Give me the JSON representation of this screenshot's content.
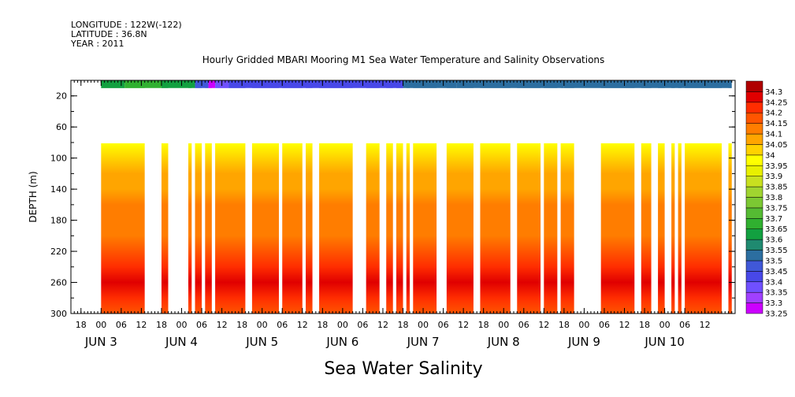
{
  "header": {
    "longitude": "LONGITUDE : 122W(-122)",
    "latitude": "LATITUDE : 36.8N",
    "year": "YEAR : 2011"
  },
  "chart_data": {
    "type": "heatmap",
    "title": "Hourly Gridded MBARI Mooring M1 Sea Water Temperature and Salinity Observations",
    "xlabel": "Sea Water Salinity",
    "ylabel": "DEPTH (m)",
    "y_axis": {
      "range": [
        300,
        0
      ],
      "inverted": true,
      "tick_values": [
        20,
        60,
        100,
        140,
        180,
        220,
        260,
        300
      ],
      "tick_labels": [
        "20",
        "60",
        "100",
        "140",
        "180",
        "220",
        "260",
        "300"
      ]
    },
    "x_axis": {
      "start": "2011-06-02T15:00",
      "end": "2011-06-10T21:00",
      "hour_ticks": [
        {
          "t": "2011-06-02T18:00",
          "label": "18"
        },
        {
          "t": "2011-06-03T00:00",
          "label": "00"
        },
        {
          "t": "2011-06-03T06:00",
          "label": "06"
        },
        {
          "t": "2011-06-03T12:00",
          "label": "12"
        },
        {
          "t": "2011-06-03T18:00",
          "label": "18"
        },
        {
          "t": "2011-06-04T00:00",
          "label": "00"
        },
        {
          "t": "2011-06-04T06:00",
          "label": "06"
        },
        {
          "t": "2011-06-04T12:00",
          "label": "12"
        },
        {
          "t": "2011-06-04T18:00",
          "label": "18"
        },
        {
          "t": "2011-06-05T00:00",
          "label": "00"
        },
        {
          "t": "2011-06-05T06:00",
          "label": "06"
        },
        {
          "t": "2011-06-05T12:00",
          "label": "12"
        },
        {
          "t": "2011-06-05T18:00",
          "label": "18"
        },
        {
          "t": "2011-06-06T00:00",
          "label": "00"
        },
        {
          "t": "2011-06-06T06:00",
          "label": "06"
        },
        {
          "t": "2011-06-06T12:00",
          "label": "12"
        },
        {
          "t": "2011-06-06T18:00",
          "label": "18"
        },
        {
          "t": "2011-06-07T00:00",
          "label": "00"
        },
        {
          "t": "2011-06-07T06:00",
          "label": "06"
        },
        {
          "t": "2011-06-07T12:00",
          "label": "12"
        },
        {
          "t": "2011-06-07T18:00",
          "label": "18"
        },
        {
          "t": "2011-06-08T00:00",
          "label": "00"
        },
        {
          "t": "2011-06-08T06:00",
          "label": "06"
        },
        {
          "t": "2011-06-08T12:00",
          "label": "12"
        },
        {
          "t": "2011-06-08T18:00",
          "label": "18"
        },
        {
          "t": "2011-06-09T00:00",
          "label": "00"
        },
        {
          "t": "2011-06-09T06:00",
          "label": "06"
        },
        {
          "t": "2011-06-09T12:00",
          "label": "12"
        },
        {
          "t": "2011-06-09T18:00",
          "label": "18"
        },
        {
          "t": "2011-06-10T00:00",
          "label": "00"
        },
        {
          "t": "2011-06-10T06:00",
          "label": "06"
        },
        {
          "t": "2011-06-10T12:00",
          "label": "12"
        }
      ],
      "day_labels": [
        {
          "t": "2011-06-03T00:00",
          "label": "JUN  3"
        },
        {
          "t": "2011-06-04T00:00",
          "label": "JUN  4"
        },
        {
          "t": "2011-06-05T00:00",
          "label": "JUN  5"
        },
        {
          "t": "2011-06-06T00:00",
          "label": "JUN  6"
        },
        {
          "t": "2011-06-07T00:00",
          "label": "JUN  7"
        },
        {
          "t": "2011-06-08T00:00",
          "label": "JUN  8"
        },
        {
          "t": "2011-06-09T00:00",
          "label": "JUN  9"
        },
        {
          "t": "2011-06-10T00:00",
          "label": "JUN 10"
        }
      ]
    },
    "data_start": "2011-06-03T00:00",
    "data_end": "2011-06-10T20:00",
    "missing_intervals": [
      [
        "2011-06-03T13:00",
        "2011-06-03T18:00"
      ],
      [
        "2011-06-03T20:00",
        "2011-06-04T02:00"
      ],
      [
        "2011-06-04T03:00",
        "2011-06-04T04:00"
      ],
      [
        "2011-06-04T06:00",
        "2011-06-04T07:00"
      ],
      [
        "2011-06-04T09:00",
        "2011-06-04T10:00"
      ],
      [
        "2011-06-04T19:00",
        "2011-06-04T21:00"
      ],
      [
        "2011-06-05T05:00",
        "2011-06-05T06:00"
      ],
      [
        "2011-06-05T12:00",
        "2011-06-05T13:00"
      ],
      [
        "2011-06-05T15:00",
        "2011-06-05T17:00"
      ],
      [
        "2011-06-06T03:00",
        "2011-06-06T07:00"
      ],
      [
        "2011-06-06T11:00",
        "2011-06-06T13:00"
      ],
      [
        "2011-06-06T15:00",
        "2011-06-06T16:00"
      ],
      [
        "2011-06-06T18:00",
        "2011-06-06T19:00"
      ],
      [
        "2011-06-06T20:00",
        "2011-06-06T21:00"
      ],
      [
        "2011-06-07T04:00",
        "2011-06-07T07:00"
      ],
      [
        "2011-06-07T15:00",
        "2011-06-07T17:00"
      ],
      [
        "2011-06-08T02:00",
        "2011-06-08T04:00"
      ],
      [
        "2011-06-08T11:00",
        "2011-06-08T12:00"
      ],
      [
        "2011-06-08T16:00",
        "2011-06-08T17:00"
      ],
      [
        "2011-06-08T21:00",
        "2011-06-09T05:00"
      ],
      [
        "2011-06-09T15:00",
        "2011-06-09T17:00"
      ],
      [
        "2011-06-09T20:00",
        "2011-06-09T22:00"
      ],
      [
        "2011-06-10T00:00",
        "2011-06-10T02:00"
      ],
      [
        "2011-06-10T03:00",
        "2011-06-10T04:00"
      ],
      [
        "2011-06-10T05:00",
        "2011-06-10T06:00"
      ],
      [
        "2011-06-10T17:00",
        "2011-06-10T19:00"
      ]
    ],
    "surface_band": {
      "depth_range": [
        0,
        10
      ],
      "segments": [
        {
          "from": "2011-06-03T00:00",
          "to": "2011-06-03T07:00",
          "value": 33.62
        },
        {
          "from": "2011-06-03T07:00",
          "to": "2011-06-03T18:00",
          "value": 33.67
        },
        {
          "from": "2011-06-03T18:00",
          "to": "2011-06-04T04:00",
          "value": 33.6
        },
        {
          "from": "2011-06-04T04:00",
          "to": "2011-06-04T08:00",
          "value": 33.45
        },
        {
          "from": "2011-06-04T08:00",
          "to": "2011-06-04T10:00",
          "value": 33.28
        },
        {
          "from": "2011-06-04T10:00",
          "to": "2011-06-04T14:00",
          "value": 33.38
        },
        {
          "from": "2011-06-04T14:00",
          "to": "2011-06-06T18:00",
          "value": 33.42
        },
        {
          "from": "2011-06-06T18:00",
          "to": "2011-06-07T10:00",
          "value": 33.5
        },
        {
          "from": "2011-06-07T10:00",
          "to": "2011-06-08T18:00",
          "value": 33.53
        },
        {
          "from": "2011-06-08T18:00",
          "to": "2011-06-10T20:00",
          "value": 33.5
        }
      ]
    },
    "depth_profile": {
      "depth_range": [
        81,
        300
      ],
      "depths": [
        81,
        100,
        120,
        140,
        160,
        180,
        200,
        220,
        240,
        260,
        280,
        300
      ],
      "values": [
        33.98,
        34.02,
        34.07,
        34.09,
        34.1,
        34.11,
        34.13,
        34.17,
        34.22,
        34.25,
        34.2,
        34.18
      ]
    },
    "colorbar": {
      "values": [
        33.25,
        33.3,
        33.35,
        33.4,
        33.45,
        33.5,
        33.55,
        33.6,
        33.65,
        33.7,
        33.75,
        33.8,
        33.85,
        33.9,
        33.95,
        34,
        34.05,
        34.1,
        34.15,
        34.2,
        34.25,
        34.3
      ],
      "labels": [
        "33.25",
        "33.3",
        "33.35",
        "33.4",
        "33.45",
        "33.5",
        "33.55",
        "33.6",
        "33.65",
        "33.7",
        "33.75",
        "33.8",
        "33.85",
        "33.9",
        "33.95",
        "34",
        "34.05",
        "34.1",
        "34.15",
        "34.2",
        "34.25",
        "34.3"
      ],
      "colors": [
        "#cc00ff",
        "#a040ff",
        "#7050ff",
        "#4848e8",
        "#4058d8",
        "#2c6ea0",
        "#1f8a70",
        "#12a040",
        "#30b030",
        "#55bb33",
        "#7cc833",
        "#a0d430",
        "#c8e020",
        "#e8f000",
        "#ffff00",
        "#ffd200",
        "#ffa500",
        "#ff7d00",
        "#ff5500",
        "#ff2d00",
        "#e00000",
        "#b00000"
      ]
    }
  }
}
